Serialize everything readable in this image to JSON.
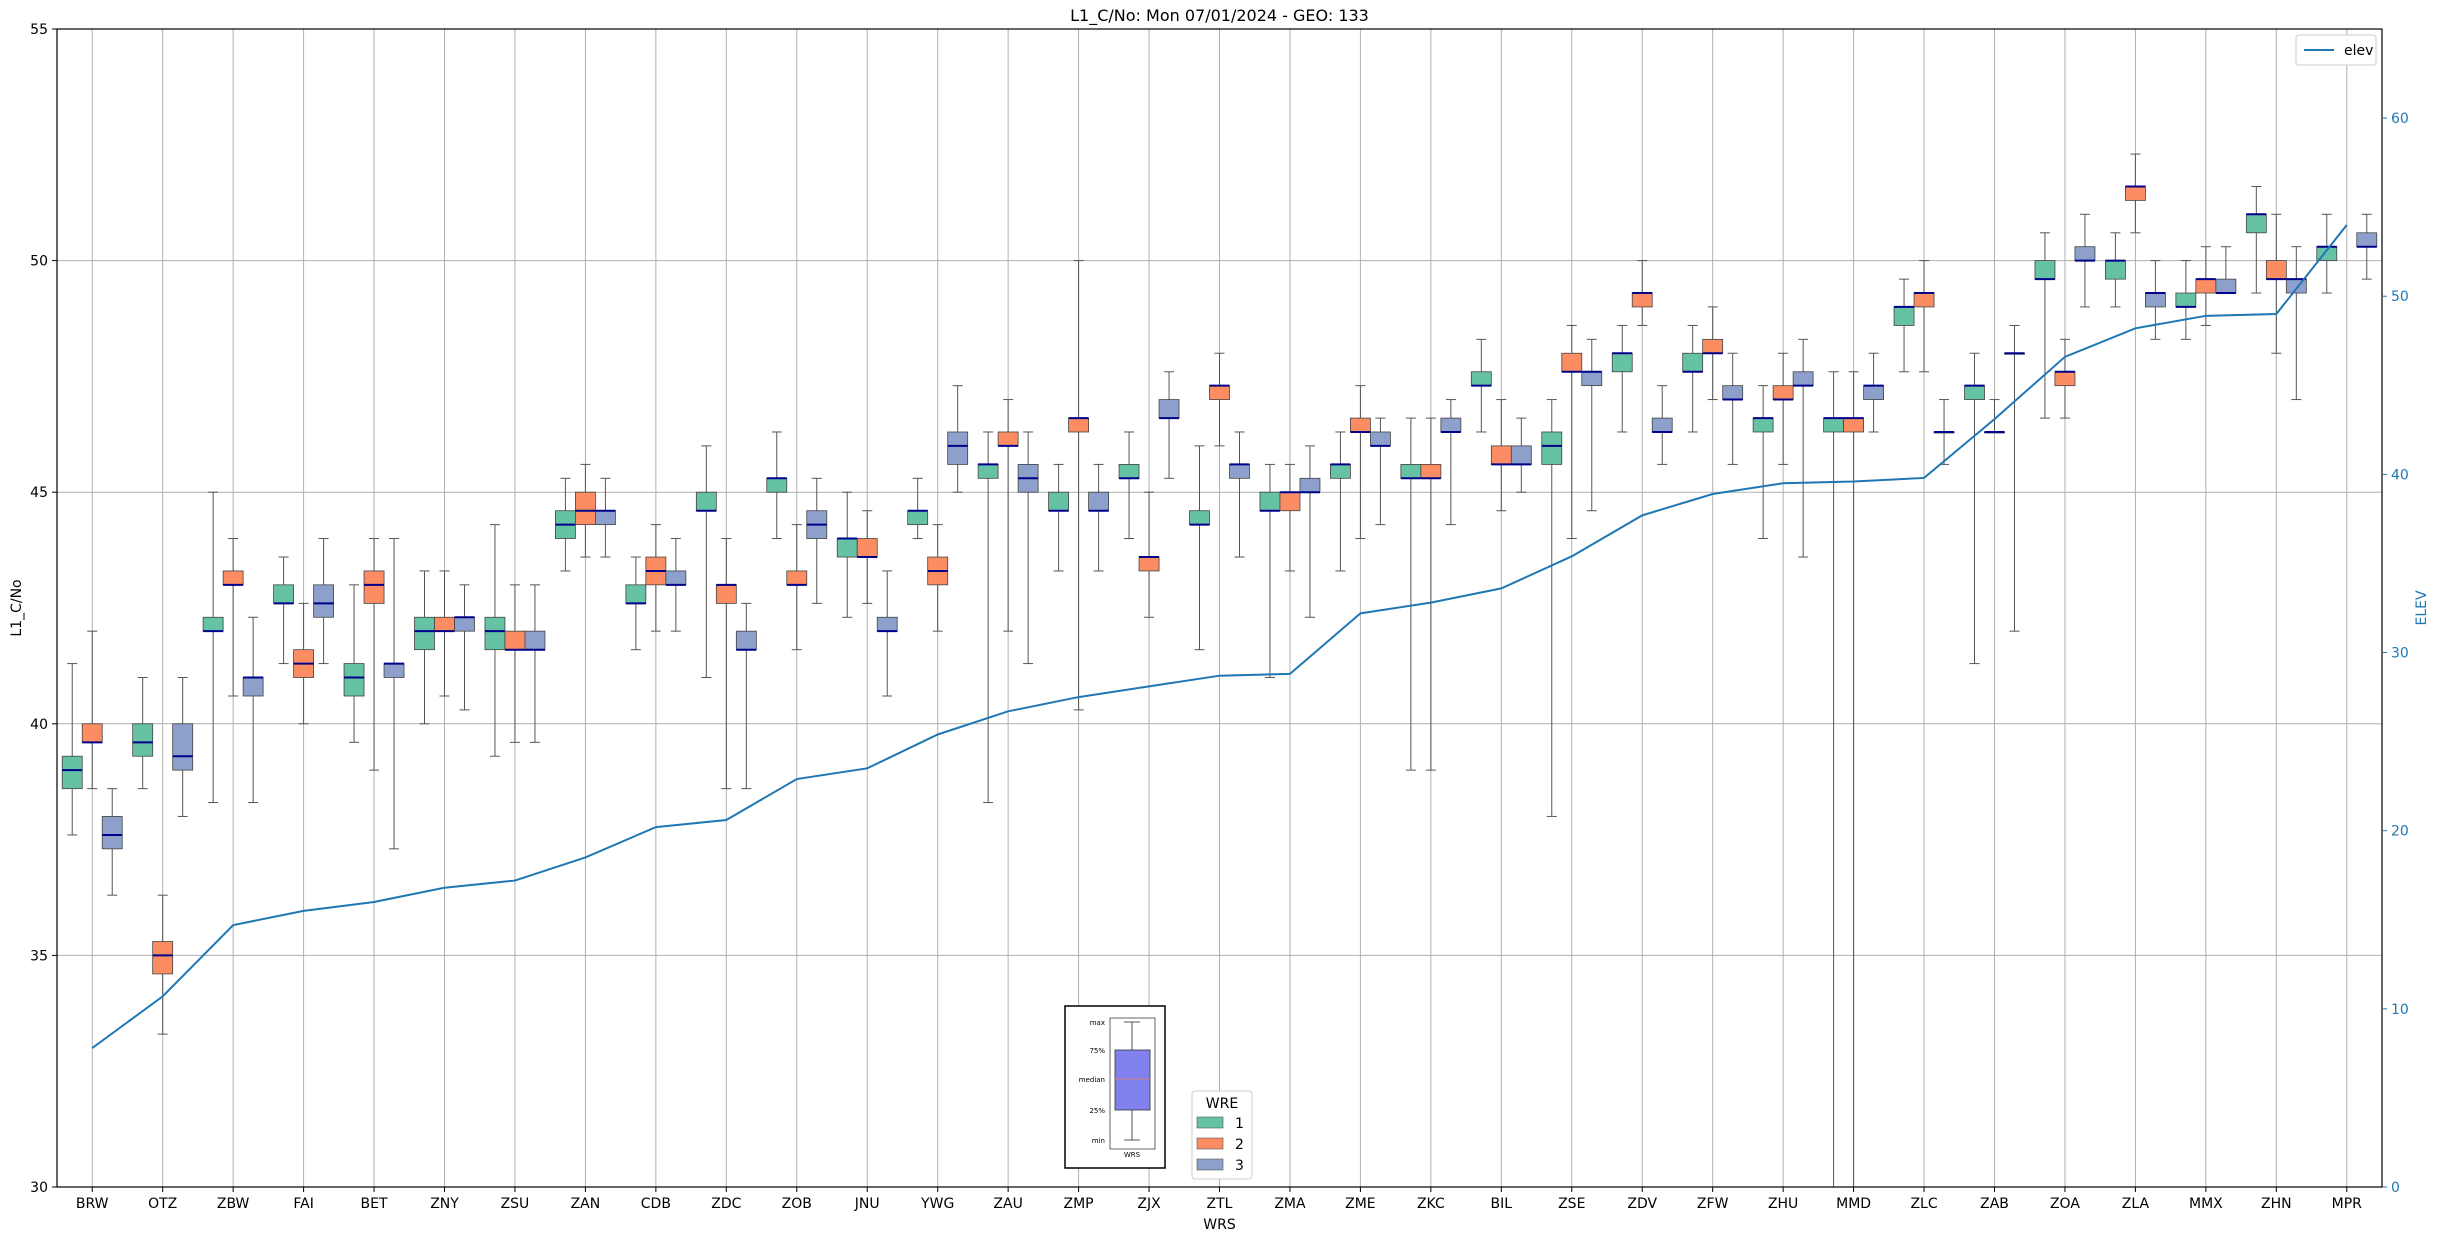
{
  "chart_data": {
    "type": "box",
    "title": "L1_C/No: Mon 07/01/2024 - GEO: 133",
    "xlabel": "WRS",
    "ylabel": "L1_C/No",
    "y2label": "ELEV",
    "ylim": [
      30,
      55
    ],
    "y2lim": [
      0,
      65
    ],
    "yticks": [
      "30",
      "35",
      "40",
      "45",
      "50",
      "55"
    ],
    "y2ticks": [
      "0",
      "10",
      "20",
      "30",
      "40",
      "50",
      "60"
    ],
    "grid": true,
    "categories": [
      "BRW",
      "OTZ",
      "ZBW",
      "FAI",
      "BET",
      "ZNY",
      "ZSU",
      "ZAN",
      "CDB",
      "ZDC",
      "ZOB",
      "JNU",
      "YWG",
      "ZAU",
      "ZMP",
      "ZJX",
      "ZTL",
      "ZMA",
      "ZME",
      "ZKC",
      "BIL",
      "ZSE",
      "ZDV",
      "ZFW",
      "ZHU",
      "MMD",
      "ZLC",
      "ZAB",
      "ZOA",
      "ZLA",
      "MMX",
      "ZHN",
      "MPR"
    ],
    "colors": {
      "1": "#66c2a5",
      "2": "#fc8d62",
      "3": "#8da0cb",
      "median": "#00008b",
      "whisker": "#555555",
      "elev": "#1f77b4",
      "grid": "#b0b0b0"
    },
    "series": [
      {
        "name": "1",
        "boxes": [
          {
            "cat": "BRW",
            "min": 37.6,
            "q1": 38.6,
            "median": 39.0,
            "q3": 39.3,
            "max": 41.3
          },
          {
            "cat": "OTZ",
            "min": 38.6,
            "q1": 39.3,
            "median": 39.6,
            "q3": 40.0,
            "max": 41.0
          },
          {
            "cat": "ZBW",
            "min": 38.3,
            "q1": 42.0,
            "median": 42.0,
            "q3": 42.3,
            "max": 45.0
          },
          {
            "cat": "FAI",
            "min": 41.3,
            "q1": 42.6,
            "median": 42.6,
            "q3": 43.0,
            "max": 43.6
          },
          {
            "cat": "BET",
            "min": 39.6,
            "q1": 40.6,
            "median": 41.0,
            "q3": 41.3,
            "max": 43.0
          },
          {
            "cat": "ZNY",
            "min": 40.0,
            "q1": 41.6,
            "median": 42.0,
            "q3": 42.3,
            "max": 43.3
          },
          {
            "cat": "ZSU",
            "min": 39.3,
            "q1": 41.6,
            "median": 42.0,
            "q3": 42.3,
            "max": 44.3
          },
          {
            "cat": "ZAN",
            "min": 43.3,
            "q1": 44.0,
            "median": 44.3,
            "q3": 44.6,
            "max": 45.3
          },
          {
            "cat": "CDB",
            "min": 41.6,
            "q1": 42.6,
            "median": 42.6,
            "q3": 43.0,
            "max": 43.6
          },
          {
            "cat": "ZDC",
            "min": 41.0,
            "q1": 44.6,
            "median": 44.6,
            "q3": 45.0,
            "max": 46.0
          },
          {
            "cat": "ZOB",
            "min": 44.0,
            "q1": 45.0,
            "median": 45.3,
            "q3": 45.3,
            "max": 46.3
          },
          {
            "cat": "JNU",
            "min": 42.3,
            "q1": 43.6,
            "median": 44.0,
            "q3": 44.0,
            "max": 45.0
          },
          {
            "cat": "YWG",
            "min": 44.0,
            "q1": 44.3,
            "median": 44.6,
            "q3": 44.6,
            "max": 45.3
          },
          {
            "cat": "ZAU",
            "min": 38.3,
            "q1": 45.3,
            "median": 45.6,
            "q3": 45.6,
            "max": 46.3
          },
          {
            "cat": "ZMP",
            "min": 43.3,
            "q1": 44.6,
            "median": 44.6,
            "q3": 45.0,
            "max": 45.6
          },
          {
            "cat": "ZJX",
            "min": 44.0,
            "q1": 45.3,
            "median": 45.3,
            "q3": 45.6,
            "max": 46.3
          },
          {
            "cat": "ZTL",
            "min": 41.6,
            "q1": 44.3,
            "median": 44.3,
            "q3": 44.6,
            "max": 46.0
          },
          {
            "cat": "ZMA",
            "min": 41.0,
            "q1": 44.6,
            "median": 44.6,
            "q3": 45.0,
            "max": 45.6
          },
          {
            "cat": "ZME",
            "min": 43.3,
            "q1": 45.3,
            "median": 45.6,
            "q3": 45.6,
            "max": 46.3
          },
          {
            "cat": "ZKC",
            "min": 39.0,
            "q1": 45.3,
            "median": 45.3,
            "q3": 45.6,
            "max": 46.6
          },
          {
            "cat": "BIL",
            "min": 46.3,
            "q1": 47.3,
            "median": 47.3,
            "q3": 47.6,
            "max": 48.3
          },
          {
            "cat": "ZSE",
            "min": 38.0,
            "q1": 45.6,
            "median": 46.0,
            "q3": 46.3,
            "max": 47.0
          },
          {
            "cat": "ZDV",
            "min": 46.3,
            "q1": 47.6,
            "median": 48.0,
            "q3": 48.0,
            "max": 48.6
          },
          {
            "cat": "ZFW",
            "min": 46.3,
            "q1": 47.6,
            "median": 47.6,
            "q3": 48.0,
            "max": 48.6
          },
          {
            "cat": "ZHU",
            "min": 44.0,
            "q1": 46.3,
            "median": 46.6,
            "q3": 46.6,
            "max": 47.3
          },
          {
            "cat": "MMD",
            "min": 30.0,
            "q1": 46.3,
            "median": 46.6,
            "q3": 46.6,
            "max": 47.6
          },
          {
            "cat": "ZLC",
            "min": 47.6,
            "q1": 48.6,
            "median": 49.0,
            "q3": 49.0,
            "max": 49.6
          },
          {
            "cat": "ZAB",
            "min": 41.3,
            "q1": 47.0,
            "median": 47.3,
            "q3": 47.3,
            "max": 48.0
          },
          {
            "cat": "ZOA",
            "min": 46.6,
            "q1": 49.6,
            "median": 49.6,
            "q3": 50.0,
            "max": 50.6
          },
          {
            "cat": "ZLA",
            "min": 49.0,
            "q1": 49.6,
            "median": 50.0,
            "q3": 50.0,
            "max": 50.6
          },
          {
            "cat": "MMX",
            "min": 48.3,
            "q1": 49.0,
            "median": 49.0,
            "q3": 49.3,
            "max": 50.0
          },
          {
            "cat": "ZHN",
            "min": 49.3,
            "q1": 50.6,
            "median": 51.0,
            "q3": 51.0,
            "max": 51.6
          },
          {
            "cat": "MPR",
            "min": 49.3,
            "q1": 50.0,
            "median": 50.3,
            "q3": 50.3,
            "max": 51.0
          }
        ]
      },
      {
        "name": "2",
        "boxes": [
          {
            "cat": "BRW",
            "min": 38.6,
            "q1": 39.6,
            "median": 39.6,
            "q3": 40.0,
            "max": 42.0
          },
          {
            "cat": "OTZ",
            "min": 33.3,
            "q1": 34.6,
            "median": 35.0,
            "q3": 35.3,
            "max": 36.3
          },
          {
            "cat": "ZBW",
            "min": 40.6,
            "q1": 43.0,
            "median": 43.0,
            "q3": 43.3,
            "max": 44.0
          },
          {
            "cat": "FAI",
            "min": 40.0,
            "q1": 41.0,
            "median": 41.3,
            "q3": 41.6,
            "max": 42.6
          },
          {
            "cat": "BET",
            "min": 39.0,
            "q1": 42.6,
            "median": 43.0,
            "q3": 43.3,
            "max": 44.0
          },
          {
            "cat": "ZNY",
            "min": 40.6,
            "q1": 42.0,
            "median": 42.0,
            "q3": 42.3,
            "max": 43.3
          },
          {
            "cat": "ZSU",
            "min": 39.6,
            "q1": 41.6,
            "median": 41.6,
            "q3": 42.0,
            "max": 43.0
          },
          {
            "cat": "ZAN",
            "min": 43.6,
            "q1": 44.3,
            "median": 44.6,
            "q3": 45.0,
            "max": 45.6
          },
          {
            "cat": "CDB",
            "min": 42.0,
            "q1": 43.0,
            "median": 43.3,
            "q3": 43.6,
            "max": 44.3
          },
          {
            "cat": "ZDC",
            "min": 38.6,
            "q1": 42.6,
            "median": 43.0,
            "q3": 43.0,
            "max": 44.0
          },
          {
            "cat": "ZOB",
            "min": 41.6,
            "q1": 43.0,
            "median": 43.0,
            "q3": 43.3,
            "max": 44.3
          },
          {
            "cat": "JNU",
            "min": 42.6,
            "q1": 43.6,
            "median": 43.6,
            "q3": 44.0,
            "max": 44.6
          },
          {
            "cat": "YWG",
            "min": 42.0,
            "q1": 43.0,
            "median": 43.3,
            "q3": 43.6,
            "max": 44.3
          },
          {
            "cat": "ZAU",
            "min": 42.0,
            "q1": 46.0,
            "median": 46.0,
            "q3": 46.3,
            "max": 47.0
          },
          {
            "cat": "ZMP",
            "min": 40.3,
            "q1": 46.3,
            "median": 46.6,
            "q3": 46.6,
            "max": 50.0
          },
          {
            "cat": "ZJX",
            "min": 42.3,
            "q1": 43.3,
            "median": 43.6,
            "q3": 43.6,
            "max": 45.0
          },
          {
            "cat": "ZTL",
            "min": 46.0,
            "q1": 47.0,
            "median": 47.3,
            "q3": 47.3,
            "max": 48.0
          },
          {
            "cat": "ZMA",
            "min": 43.3,
            "q1": 44.6,
            "median": 45.0,
            "q3": 45.0,
            "max": 45.6
          },
          {
            "cat": "ZME",
            "min": 44.0,
            "q1": 46.3,
            "median": 46.3,
            "q3": 46.6,
            "max": 47.3
          },
          {
            "cat": "ZKC",
            "min": 39.0,
            "q1": 45.3,
            "median": 45.3,
            "q3": 45.6,
            "max": 46.6
          },
          {
            "cat": "BIL",
            "min": 44.6,
            "q1": 45.6,
            "median": 45.6,
            "q3": 46.0,
            "max": 47.0
          },
          {
            "cat": "ZSE",
            "min": 44.0,
            "q1": 47.6,
            "median": 47.6,
            "q3": 48.0,
            "max": 48.6
          },
          {
            "cat": "ZDV",
            "min": 48.6,
            "q1": 49.0,
            "median": 49.3,
            "q3": 49.3,
            "max": 50.0
          },
          {
            "cat": "ZFW",
            "min": 47.0,
            "q1": 48.0,
            "median": 48.0,
            "q3": 48.3,
            "max": 49.0
          },
          {
            "cat": "ZHU",
            "min": 45.6,
            "q1": 47.0,
            "median": 47.0,
            "q3": 47.3,
            "max": 48.0
          },
          {
            "cat": "MMD",
            "min": 30.0,
            "q1": 46.3,
            "median": 46.6,
            "q3": 46.6,
            "max": 47.6
          },
          {
            "cat": "ZLC",
            "min": 47.6,
            "q1": 49.0,
            "median": 49.3,
            "q3": 49.3,
            "max": 50.0
          },
          {
            "cat": "ZAB",
            "min": 46.3,
            "q1": 46.3,
            "median": 46.3,
            "q3": 46.3,
            "max": 47.0
          },
          {
            "cat": "ZOA",
            "min": 46.6,
            "q1": 47.3,
            "median": 47.6,
            "q3": 47.6,
            "max": 48.3
          },
          {
            "cat": "ZLA",
            "min": 50.6,
            "q1": 51.3,
            "median": 51.6,
            "q3": 51.6,
            "max": 52.3
          },
          {
            "cat": "MMX",
            "min": 48.6,
            "q1": 49.3,
            "median": 49.6,
            "q3": 49.6,
            "max": 50.3
          },
          {
            "cat": "ZHN",
            "min": 48.0,
            "q1": 49.6,
            "median": 49.6,
            "q3": 50.0,
            "max": 51.0
          }
        ]
      },
      {
        "name": "3",
        "boxes": [
          {
            "cat": "BRW",
            "min": 36.3,
            "q1": 37.3,
            "median": 37.6,
            "q3": 38.0,
            "max": 38.6
          },
          {
            "cat": "OTZ",
            "min": 38.0,
            "q1": 39.0,
            "median": 39.3,
            "q3": 40.0,
            "max": 41.0
          },
          {
            "cat": "ZBW",
            "min": 38.3,
            "q1": 40.6,
            "median": 41.0,
            "q3": 41.0,
            "max": 42.3
          },
          {
            "cat": "FAI",
            "min": 41.3,
            "q1": 42.3,
            "median": 42.6,
            "q3": 43.0,
            "max": 44.0
          },
          {
            "cat": "BET",
            "min": 37.3,
            "q1": 41.0,
            "median": 41.3,
            "q3": 41.3,
            "max": 44.0
          },
          {
            "cat": "ZNY",
            "min": 40.3,
            "q1": 42.0,
            "median": 42.3,
            "q3": 42.3,
            "max": 43.0
          },
          {
            "cat": "ZSU",
            "min": 39.6,
            "q1": 41.6,
            "median": 41.6,
            "q3": 42.0,
            "max": 43.0
          },
          {
            "cat": "ZAN",
            "min": 43.6,
            "q1": 44.3,
            "median": 44.6,
            "q3": 44.6,
            "max": 45.3
          },
          {
            "cat": "CDB",
            "min": 42.0,
            "q1": 43.0,
            "median": 43.0,
            "q3": 43.3,
            "max": 44.0
          },
          {
            "cat": "ZDC",
            "min": 38.6,
            "q1": 41.6,
            "median": 41.6,
            "q3": 42.0,
            "max": 42.6
          },
          {
            "cat": "ZOB",
            "min": 42.6,
            "q1": 44.0,
            "median": 44.3,
            "q3": 44.6,
            "max": 45.3
          },
          {
            "cat": "JNU",
            "min": 40.6,
            "q1": 42.0,
            "median": 42.0,
            "q3": 42.3,
            "max": 43.3
          },
          {
            "cat": "YWG",
            "min": 45.0,
            "q1": 45.6,
            "median": 46.0,
            "q3": 46.3,
            "max": 47.3
          },
          {
            "cat": "ZAU",
            "min": 41.3,
            "q1": 45.0,
            "median": 45.3,
            "q3": 45.6,
            "max": 46.3
          },
          {
            "cat": "ZMP",
            "min": 43.3,
            "q1": 44.6,
            "median": 44.6,
            "q3": 45.0,
            "max": 45.6
          },
          {
            "cat": "ZJX",
            "min": 45.3,
            "q1": 46.6,
            "median": 46.6,
            "q3": 47.0,
            "max": 47.6
          },
          {
            "cat": "ZTL",
            "min": 43.6,
            "q1": 45.3,
            "median": 45.6,
            "q3": 45.6,
            "max": 46.3
          },
          {
            "cat": "ZMA",
            "min": 42.3,
            "q1": 45.0,
            "median": 45.0,
            "q3": 45.3,
            "max": 46.0
          },
          {
            "cat": "ZME",
            "min": 44.3,
            "q1": 46.0,
            "median": 46.0,
            "q3": 46.3,
            "max": 46.6
          },
          {
            "cat": "ZKC",
            "min": 44.3,
            "q1": 46.3,
            "median": 46.3,
            "q3": 46.6,
            "max": 47.0
          },
          {
            "cat": "BIL",
            "min": 45.0,
            "q1": 45.6,
            "median": 45.6,
            "q3": 46.0,
            "max": 46.6
          },
          {
            "cat": "ZSE",
            "min": 44.6,
            "q1": 47.3,
            "median": 47.6,
            "q3": 47.6,
            "max": 48.3
          },
          {
            "cat": "ZDV",
            "min": 45.6,
            "q1": 46.3,
            "median": 46.3,
            "q3": 46.6,
            "max": 47.3
          },
          {
            "cat": "ZFW",
            "min": 45.6,
            "q1": 47.0,
            "median": 47.0,
            "q3": 47.3,
            "max": 48.0
          },
          {
            "cat": "ZHU",
            "min": 43.6,
            "q1": 47.3,
            "median": 47.3,
            "q3": 47.6,
            "max": 48.3
          },
          {
            "cat": "MMD",
            "min": 46.3,
            "q1": 47.0,
            "median": 47.3,
            "q3": 47.3,
            "max": 48.0
          },
          {
            "cat": "ZLC",
            "min": 45.6,
            "q1": 46.3,
            "median": 46.3,
            "q3": 46.3,
            "max": 47.0
          },
          {
            "cat": "ZAB",
            "min": 42.0,
            "q1": 48.0,
            "median": 48.0,
            "q3": 48.0,
            "max": 48.6
          },
          {
            "cat": "ZOA",
            "min": 49.0,
            "q1": 50.0,
            "median": 50.0,
            "q3": 50.3,
            "max": 51.0
          },
          {
            "cat": "ZLA",
            "min": 48.3,
            "q1": 49.0,
            "median": 49.3,
            "q3": 49.3,
            "max": 50.0
          },
          {
            "cat": "MMX",
            "min": 49.3,
            "q1": 49.3,
            "median": 49.3,
            "q3": 49.6,
            "max": 50.3
          },
          {
            "cat": "ZHN",
            "min": 47.0,
            "q1": 49.3,
            "median": 49.6,
            "q3": 49.6,
            "max": 50.3
          },
          {
            "cat": "MPR",
            "min": 49.6,
            "q1": 50.3,
            "median": 50.3,
            "q3": 50.6,
            "max": 51.0
          }
        ]
      }
    ],
    "elev": {
      "name": "elev",
      "values": [
        7.8,
        10.7,
        14.7,
        15.5,
        16.0,
        16.8,
        17.2,
        18.5,
        20.2,
        20.6,
        22.9,
        23.5,
        25.4,
        26.7,
        27.5,
        28.1,
        28.7,
        28.8,
        32.2,
        32.8,
        33.6,
        35.4,
        37.7,
        38.9,
        39.5,
        39.6,
        39.8,
        43.1,
        46.6,
        48.2,
        48.9,
        49.0,
        54.0
      ]
    },
    "legend": {
      "title": "WRE",
      "entries": [
        "1",
        "2",
        "3"
      ],
      "placement": "bottom-center"
    },
    "elev_legend": {
      "label": "elev",
      "placement": "top-right"
    },
    "key_box": {
      "labels": [
        "max",
        "75%",
        "median",
        "25%",
        "min"
      ],
      "caption": "WRS"
    }
  }
}
